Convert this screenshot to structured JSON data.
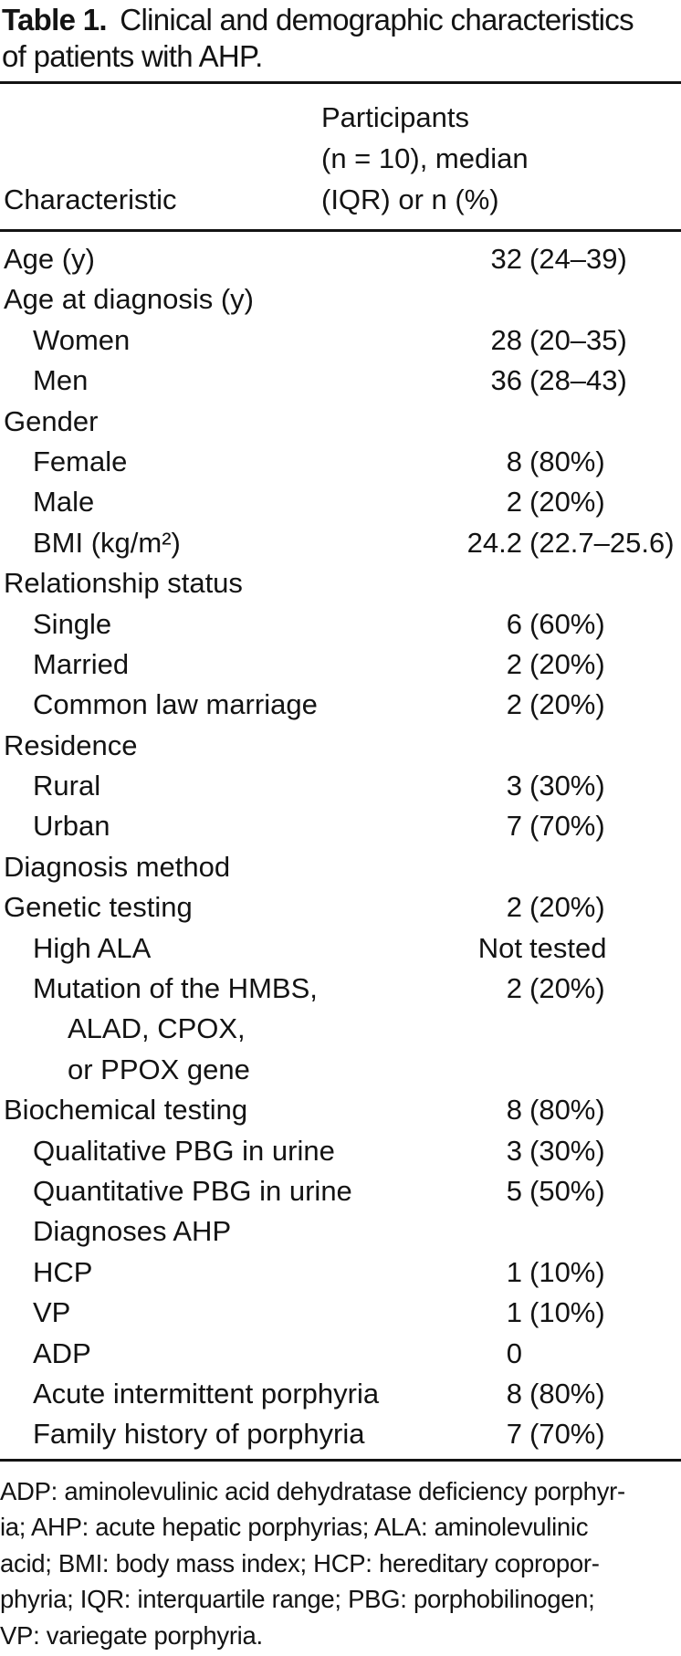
{
  "title": {
    "prefix": "Table 1.",
    "line1_rest": " Clinical and demographic characteristics",
    "line2": "of patients with AHP."
  },
  "header": {
    "col1": "Characteristic",
    "col2_lines": [
      "Participants",
      "(n = 10), median",
      "(IQR) or n (%)"
    ]
  },
  "rows": [
    {
      "label": "Age (y)",
      "indent": 0,
      "value": "32 (24–39)"
    },
    {
      "label": "Age at diagnosis (y)",
      "indent": 0,
      "value": ""
    },
    {
      "label": "Women",
      "indent": 1,
      "value": "28 (20–35)"
    },
    {
      "label": "Men",
      "indent": 1,
      "value": "36 (28–43)"
    },
    {
      "label": "Gender",
      "indent": 0,
      "value": ""
    },
    {
      "label": "Female",
      "indent": 1,
      "value": "8 (80%)"
    },
    {
      "label": "Male",
      "indent": 1,
      "value": "2 (20%)"
    },
    {
      "label": "BMI (kg/m²)",
      "indent": 1,
      "value": "24.2 (22.7–25.6)"
    },
    {
      "label": "Relationship status",
      "indent": 0,
      "value": ""
    },
    {
      "label": "Single",
      "indent": 1,
      "value": "6 (60%)"
    },
    {
      "label": "Married",
      "indent": 1,
      "value": "2 (20%)"
    },
    {
      "label": "Common law marriage",
      "indent": 1,
      "value": "2 (20%)"
    },
    {
      "label": "Residence",
      "indent": 0,
      "value": ""
    },
    {
      "label": "Rural",
      "indent": 1,
      "value": "3 (30%)"
    },
    {
      "label": "Urban",
      "indent": 1,
      "value": "7 (70%)"
    },
    {
      "label": "Diagnosis method",
      "indent": 0,
      "value": ""
    },
    {
      "label": "Genetic testing",
      "indent": 0,
      "value": "2 (20%)"
    },
    {
      "label": "High ALA",
      "indent": 1,
      "value": "Not tested"
    },
    {
      "label": "Mutation of the HMBS,",
      "indent": 1,
      "value": "2 (20%)"
    },
    {
      "label": "ALAD, CPOX,",
      "indent": 2,
      "value": ""
    },
    {
      "label": "or PPOX gene",
      "indent": 2,
      "value": ""
    },
    {
      "label": "Biochemical testing",
      "indent": 0,
      "value": "8 (80%)"
    },
    {
      "label": "Qualitative PBG in urine",
      "indent": 1,
      "value": "3 (30%)"
    },
    {
      "label": "Quantitative PBG in urine",
      "indent": 1,
      "value": "5 (50%)"
    },
    {
      "label": "Diagnoses AHP",
      "indent": 1,
      "value": ""
    },
    {
      "label": "HCP",
      "indent": 1,
      "value": "1 (10%)"
    },
    {
      "label": "VP",
      "indent": 1,
      "value": "1 (10%)"
    },
    {
      "label": "ADP",
      "indent": 1,
      "value": "0"
    },
    {
      "label": "Acute intermittent porphyria",
      "indent": 1,
      "value": "8 (80%)"
    },
    {
      "label": "Family history of porphyria",
      "indent": 1,
      "value": "7 (70%)"
    }
  ],
  "footnote": {
    "lines": [
      "ADP: aminolevulinic acid dehydratase deficiency porphyr-",
      "ia; AHP: acute hepatic porphyrias; ALA: aminolevulinic",
      "acid; BMI: body mass index; HCP: hereditary copropor-",
      "phyria; IQR: interquartile range; PBG: porphobilinogen;",
      "VP: variegate porphyria."
    ]
  }
}
